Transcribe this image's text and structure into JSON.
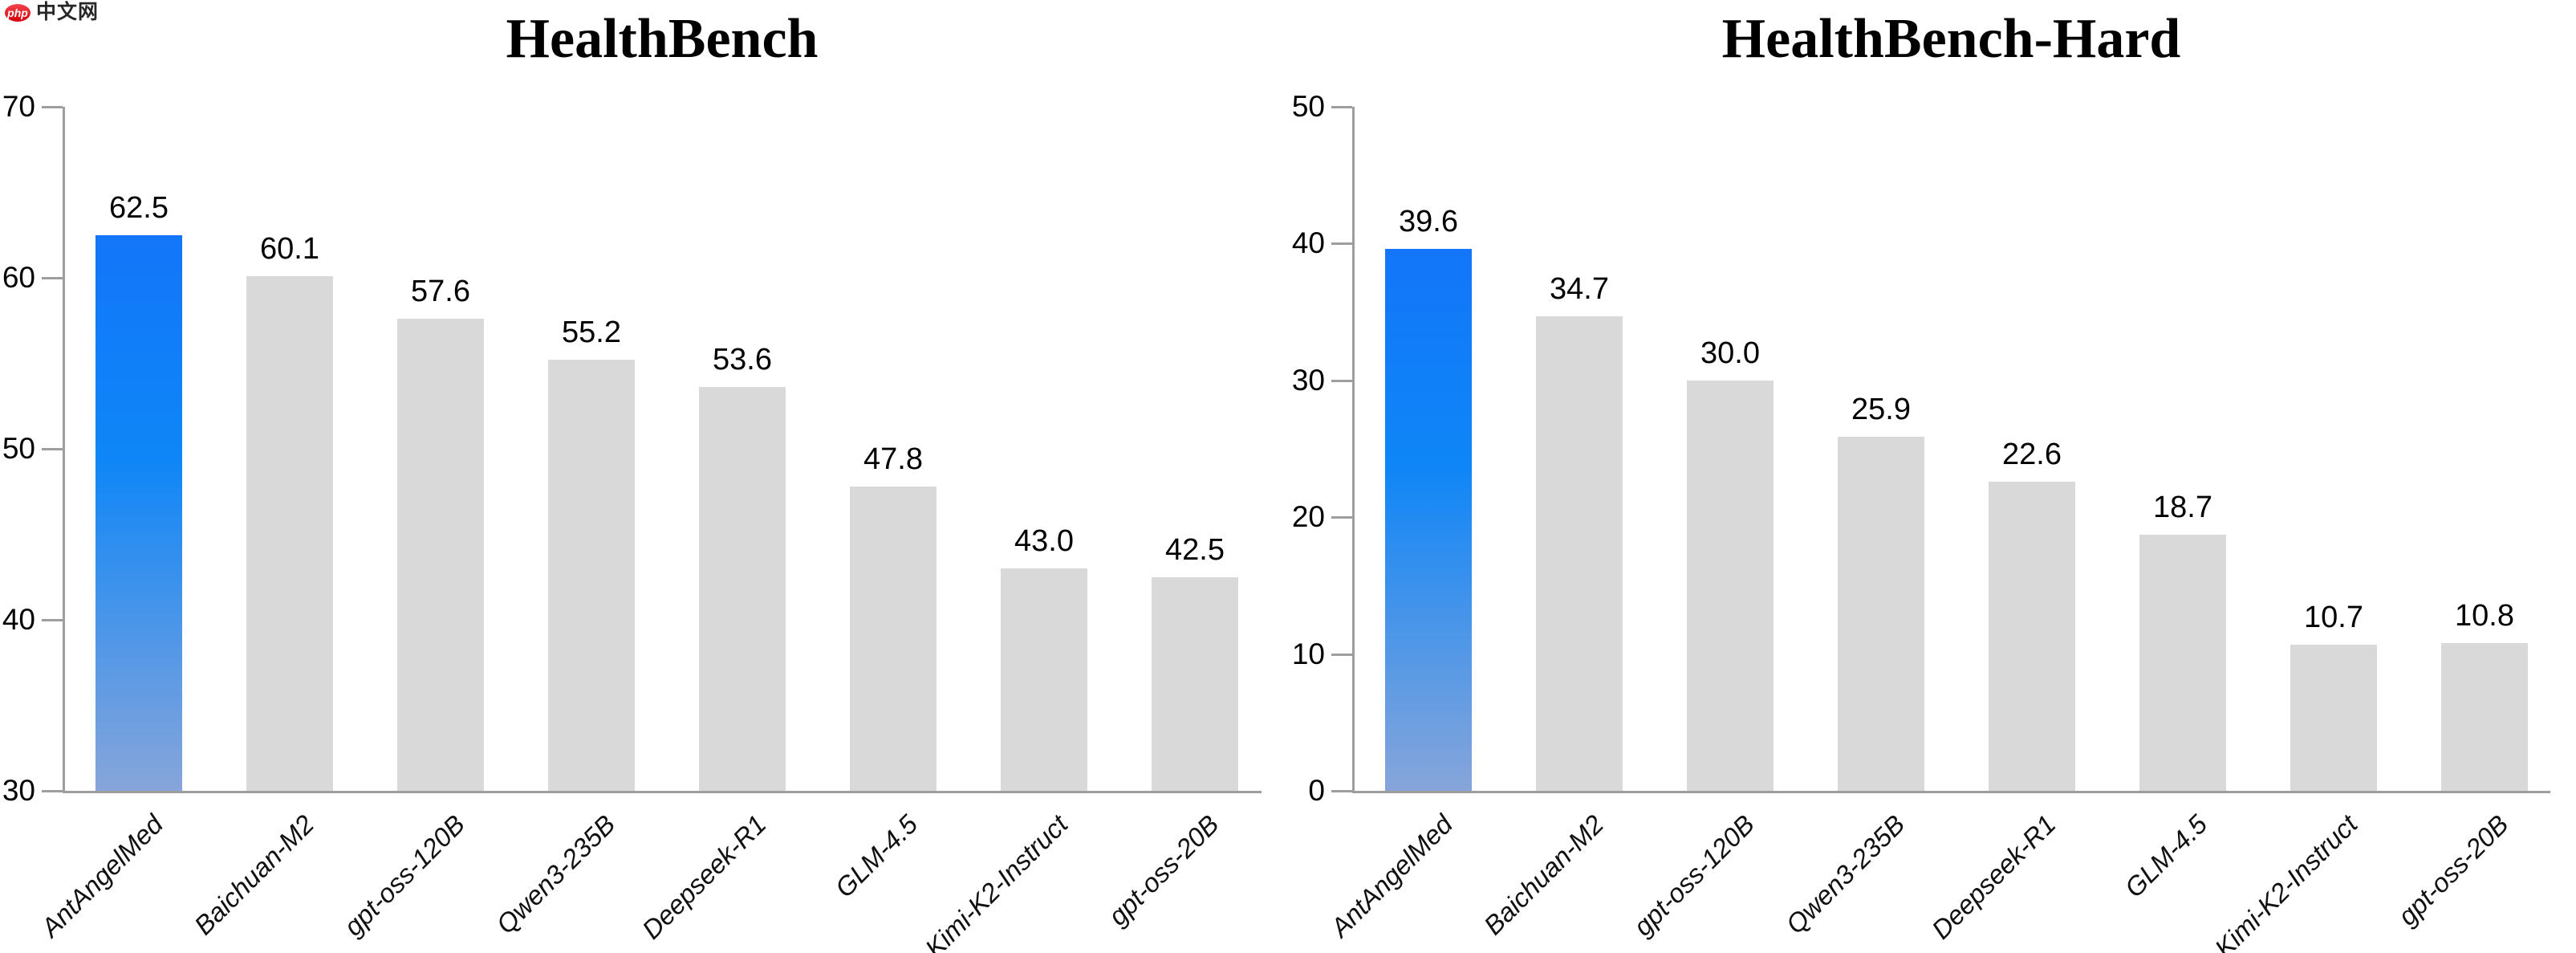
{
  "logo": {
    "badge": "php",
    "text": "中文网",
    "badge_color": "#e0111a",
    "text_color": "#272727"
  },
  "chart_data": [
    {
      "type": "bar",
      "title": "HealthBench",
      "categories": [
        "AntAngelMed",
        "Baichuan-M2",
        "gpt-oss-120B",
        "Qwen3-235B",
        "Deepseek-R1",
        "GLM-4.5",
        "Kimi-K2-Instruct",
        "gpt-oss-20B"
      ],
      "values": [
        62.5,
        60.1,
        57.6,
        55.2,
        53.6,
        47.8,
        43.0,
        42.5
      ],
      "value_labels": [
        "62.5",
        "60.1",
        "57.6",
        "55.2",
        "53.6",
        "47.8",
        "43.0",
        "42.5"
      ],
      "xlabel": "",
      "ylabel": "",
      "ylim": [
        30,
        70
      ],
      "yticks": [
        30,
        40,
        50,
        60,
        70
      ],
      "grid": false,
      "legend": false,
      "highlight_index": 0,
      "highlight_color_top": "#1376f9",
      "highlight_color_mid": "#0e86f7",
      "highlight_color_bottom": "#87a5da",
      "bar_color": "#d9d9d9"
    },
    {
      "type": "bar",
      "title": "HealthBench-Hard",
      "categories": [
        "AntAngelMed",
        "Baichuan-M2",
        "gpt-oss-120B",
        "Qwen3-235B",
        "Deepseek-R1",
        "GLM-4.5",
        "Kimi-K2-Instruct",
        "gpt-oss-20B"
      ],
      "values": [
        39.6,
        34.7,
        30.0,
        25.9,
        22.6,
        18.7,
        10.7,
        10.8
      ],
      "value_labels": [
        "39.6",
        "34.7",
        "30.0",
        "25.9",
        "22.6",
        "18.7",
        "10.7",
        "10.8"
      ],
      "xlabel": "",
      "ylabel": "",
      "ylim": [
        0,
        50
      ],
      "yticks": [
        0,
        10,
        20,
        30,
        40,
        50
      ],
      "grid": false,
      "legend": false,
      "highlight_index": 0,
      "highlight_color_top": "#1376f9",
      "highlight_color_mid": "#0e86f7",
      "highlight_color_bottom": "#87a5da",
      "bar_color": "#d9d9d9"
    }
  ]
}
